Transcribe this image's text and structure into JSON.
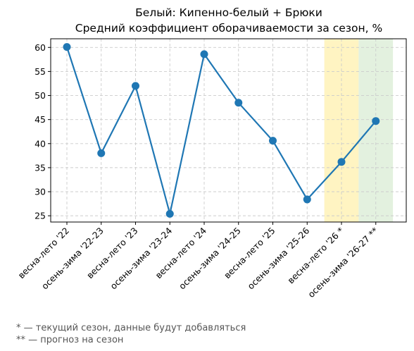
{
  "chart_data": {
    "type": "line",
    "title_line1": "Белый: Кипенно-белый + Брюки",
    "title_line2": "Средний коэффициент оборачиваемости за сезон, %",
    "xlabel": "",
    "ylabel": "",
    "categories": [
      "весна-лето '22",
      "осень-зима '22-23",
      "весна-лето '23",
      "осень-зима '23-24",
      "весна-лето '24",
      "осень-зима '24-25",
      "весна-лето '25",
      "осень-зима '25-26",
      "весна-лето '26 *",
      "осень-зима '26-27 **"
    ],
    "series": [
      {
        "values": [
          60.1,
          38.0,
          52.0,
          25.4,
          58.6,
          48.5,
          40.6,
          28.4,
          36.2,
          44.7
        ],
        "color": "#1f77b4"
      }
    ],
    "yticks": [
      25,
      30,
      35,
      40,
      45,
      50,
      55,
      60
    ],
    "ylim": [
      23.7,
      61.8
    ],
    "grid": true,
    "highlights": [
      {
        "category_index": 8,
        "color": "#fff4c2"
      },
      {
        "category_index": 9,
        "color": "#e3f1df"
      }
    ],
    "footnotes": [
      "* — текущий сезон, данные будут добавляться",
      "** — прогноз на сезон"
    ]
  }
}
